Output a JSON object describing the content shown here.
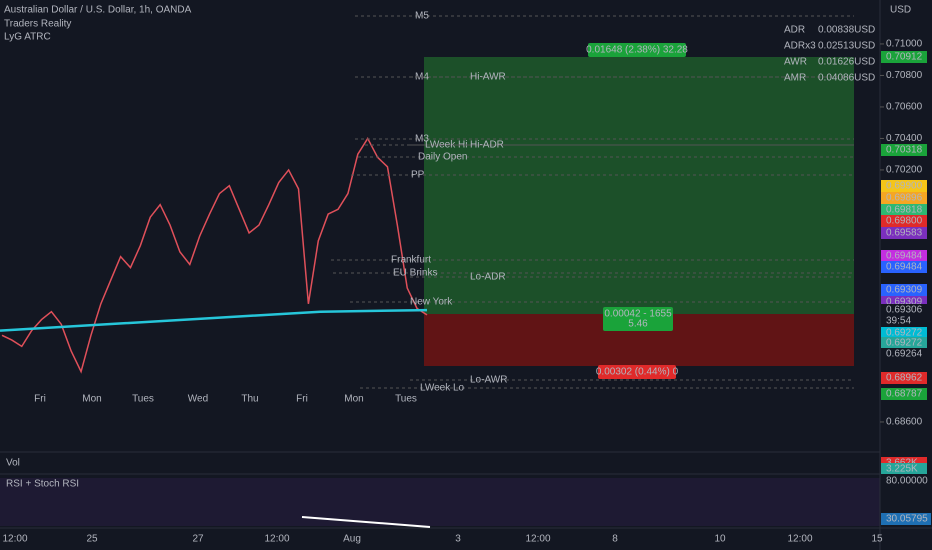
{
  "header": {
    "title": "Australian Dollar / U.S. Dollar, 1h, OANDA",
    "indicators": [
      "Traders Reality",
      "LyG ATRC"
    ],
    "currency": "USD"
  },
  "stats": [
    {
      "label": "ADR",
      "value": "0.00838USD"
    },
    {
      "label": "ADRx3",
      "value": "0.02513USD"
    },
    {
      "label": "AWR",
      "value": "0.01626USD"
    },
    {
      "label": "AMR",
      "value": "0.04086USD"
    }
  ],
  "price_chart": {
    "ylim": [
      0.68422,
      0.71279
    ],
    "yticks": [
      {
        "value": 0.71,
        "label": "0.71000"
      },
      {
        "value": 0.708,
        "label": "0.70800"
      },
      {
        "value": 0.706,
        "label": "0.70600"
      },
      {
        "value": 0.704,
        "label": "0.70400"
      },
      {
        "value": 0.702,
        "label": "0.70200"
      },
      {
        "value": 0.686,
        "label": "0.68600"
      }
    ],
    "closes": [
      0.6915,
      0.6912,
      0.6908,
      0.6918,
      0.6925,
      0.693,
      0.6922,
      0.6905,
      0.6892,
      0.6915,
      0.6935,
      0.695,
      0.6965,
      0.6958,
      0.6972,
      0.699,
      0.6998,
      0.6985,
      0.6968,
      0.696,
      0.6978,
      0.6992,
      0.7005,
      0.701,
      0.6995,
      0.698,
      0.6985,
      0.6998,
      0.7012,
      0.702,
      0.7008,
      0.6935,
      0.6975,
      0.6992,
      0.6995,
      0.7005,
      0.703,
      0.704,
      0.7028,
      0.7022,
      0.6985,
      0.6945,
      0.6932,
      0.6928
    ],
    "ma": [
      0.6918,
      0.6922,
      0.6926,
      0.693,
      0.6931
    ],
    "day_labels": [
      "Fri",
      "Mon",
      "Tues",
      "Wed",
      "Thu",
      "Fri",
      "Mon",
      "Tues"
    ],
    "levels": [
      "M5",
      "M4",
      "Hi-AWR",
      "M3",
      "LWeek Hi",
      "Hi-ADR",
      "Daily Open",
      "PP",
      "Frankfurt",
      "EU Brinks",
      "Lo-ADR",
      "New York",
      "Lo-AWR",
      "LWeek Lo"
    ],
    "position": {
      "target": "0.01648 (2.38%) 32.28",
      "entry": [
        "0.00042 - 1655",
        "5.46"
      ],
      "stop": "0.00302 (0.44%) 0"
    },
    "price_tags": [
      "0.70912",
      "0.70318",
      "0.69900",
      "0.69896",
      "0.69818",
      "0.69800",
      "0.69583",
      "0.69484",
      "0.69484",
      "0.69309",
      "0.69309",
      "0.69306",
      "39:54",
      "0.69272",
      "0.69272",
      "0.69264",
      "0.68962",
      "0.68787"
    ]
  },
  "volume": {
    "label": "Vol",
    "tags": [
      "3.662K",
      "3.225K"
    ]
  },
  "rsi": {
    "label": "RSI + Stoch RSI",
    "tags": [
      "80.00000",
      "30.05795"
    ]
  },
  "time_axis": [
    "12:00",
    "25",
    "27",
    "12:00",
    "Aug",
    "3",
    "12:00",
    "8",
    "10",
    "12:00",
    "15"
  ]
}
